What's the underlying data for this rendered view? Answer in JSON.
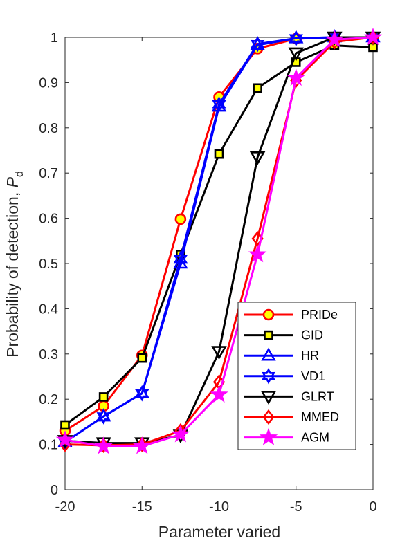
{
  "chart_data": {
    "type": "line",
    "xlabel": "Parameter varied",
    "ylabel": "Probability of detection, ",
    "ylabel_symbol": "P",
    "ylabel_subscript": "d",
    "xlim": [
      -20,
      0
    ],
    "ylim": [
      0,
      1
    ],
    "x_ticks": [
      -20,
      -15,
      -10,
      -5,
      0
    ],
    "x_tick_labels": [
      "-20",
      "-15",
      "-10",
      "-5",
      "0"
    ],
    "y_ticks": [
      0,
      0.1,
      0.2,
      0.3,
      0.4,
      0.5,
      0.6,
      0.7,
      0.8,
      0.9,
      1
    ],
    "y_tick_labels": [
      "0",
      "0.1",
      "0.2",
      "0.3",
      "0.4",
      "0.5",
      "0.6",
      "0.7",
      "0.8",
      "0.9",
      "1"
    ],
    "grid": false,
    "legend_position": "bottom-right",
    "x": [
      -20,
      -17.5,
      -15,
      -12.5,
      -10,
      -7.5,
      -5,
      -2.5,
      0
    ],
    "series": [
      {
        "name": "PRIDe",
        "color": "#ff0000",
        "marker": "circle",
        "marker_fill": "#ffff00",
        "values": [
          0.13,
          0.185,
          0.297,
          0.598,
          0.868,
          0.975,
          0.997,
          1.0,
          1.0
        ]
      },
      {
        "name": "GID",
        "color": "#000000",
        "marker": "square",
        "marker_fill": "#ffff00",
        "values": [
          0.143,
          0.205,
          0.291,
          0.52,
          0.742,
          0.888,
          0.945,
          0.982,
          0.978
        ]
      },
      {
        "name": "HR",
        "color": "#0000ff",
        "marker": "triangle-up",
        "marker_fill": "none",
        "values": [
          0.105,
          0.162,
          0.213,
          0.5,
          0.847,
          0.983,
          0.998,
          1.0,
          1.0
        ]
      },
      {
        "name": "VD1",
        "color": "#0000ff",
        "marker": "hexagram",
        "marker_fill": "none",
        "values": [
          0.105,
          0.162,
          0.213,
          0.51,
          0.852,
          0.985,
          0.998,
          1.0,
          1.0
        ]
      },
      {
        "name": "GLRT",
        "color": "#000000",
        "marker": "triangle-down",
        "marker_fill": "none",
        "values": [
          0.108,
          0.103,
          0.103,
          0.12,
          0.305,
          0.735,
          0.965,
          1.0,
          1.0
        ]
      },
      {
        "name": "MMED",
        "color": "#ff0000",
        "marker": "diamond",
        "marker_fill": "none",
        "values": [
          0.1,
          0.098,
          0.1,
          0.13,
          0.238,
          0.555,
          0.905,
          0.99,
          1.0
        ]
      },
      {
        "name": "AGM",
        "color": "#ff00ff",
        "marker": "pentagram",
        "marker_fill": "#ff00ff",
        "values": [
          0.11,
          0.096,
          0.096,
          0.122,
          0.21,
          0.52,
          0.91,
          0.995,
          1.0
        ]
      }
    ]
  }
}
